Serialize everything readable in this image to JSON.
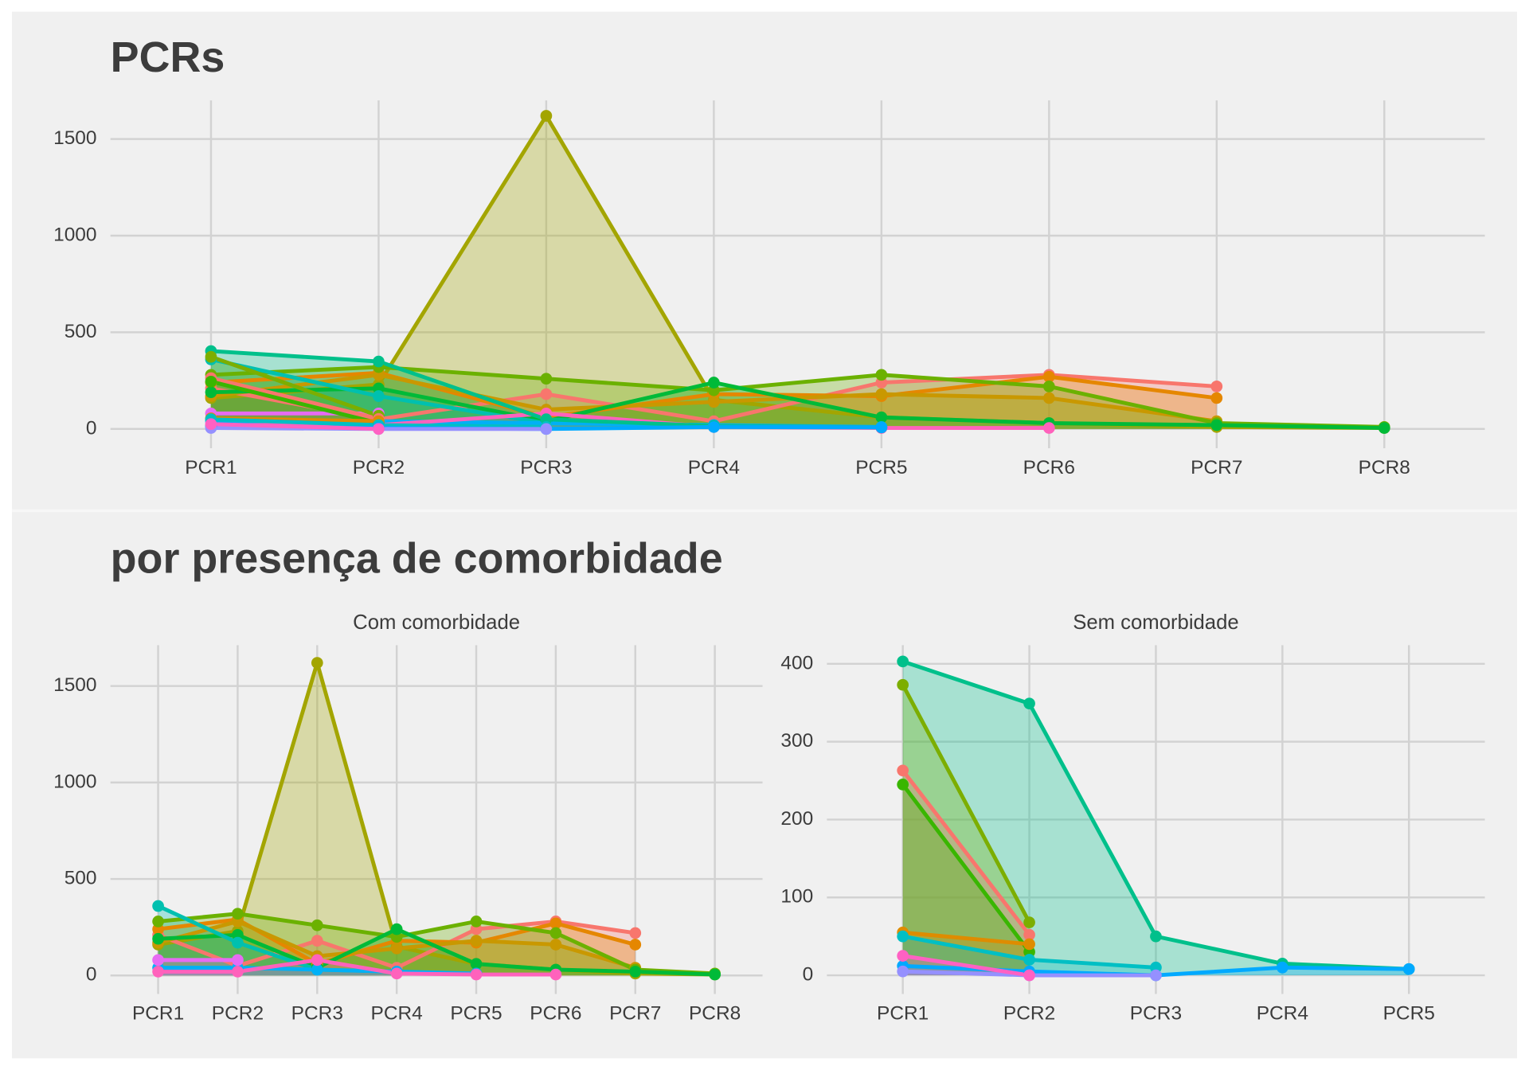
{
  "chart_data": [
    {
      "type": "area",
      "title": "PCRs",
      "categories": [
        "PCR1",
        "PCR2",
        "PCR3",
        "PCR4",
        "PCR5",
        "PCR6",
        "PCR7",
        "PCR8"
      ],
      "ylim": [
        -100,
        1700
      ],
      "yticks": [
        0,
        500,
        1000,
        1500
      ],
      "grid": true,
      "series": [
        {
          "color": "#a3a500",
          "values": [
            160,
            230,
            1620,
            150,
            60,
            30,
            10,
            5
          ]
        },
        {
          "color": "#f8766d",
          "values": [
            210,
            50,
            180,
            40,
            240,
            280,
            220,
            null
          ]
        },
        {
          "color": "#e58700",
          "values": [
            240,
            290,
            60,
            180,
            170,
            270,
            160,
            null
          ]
        },
        {
          "color": "#c99800",
          "values": [
            170,
            280,
            100,
            140,
            180,
            160,
            40,
            null
          ]
        },
        {
          "color": "#6bb100",
          "values": [
            280,
            320,
            260,
            200,
            280,
            220,
            30,
            10
          ]
        },
        {
          "color": "#00ba38",
          "values": [
            190,
            210,
            40,
            240,
            60,
            30,
            20,
            5
          ]
        },
        {
          "color": "#00c0af",
          "values": [
            360,
            170,
            30,
            20,
            null,
            null,
            null,
            null
          ]
        },
        {
          "color": "#00b0f6",
          "values": [
            40,
            40,
            30,
            20,
            10,
            null,
            null,
            null
          ]
        },
        {
          "color": "#e76bf3",
          "values": [
            80,
            80,
            null,
            null,
            null,
            null,
            null,
            null
          ]
        },
        {
          "color": "#ff62bc",
          "values": [
            20,
            20,
            80,
            10,
            5,
            5,
            null,
            null
          ]
        },
        {
          "color": "#00c08b",
          "values": [
            403,
            349,
            50,
            15,
            8,
            null,
            null,
            null
          ]
        },
        {
          "color": "#7cae00",
          "values": [
            373,
            68,
            null,
            null,
            null,
            null,
            null,
            null
          ]
        },
        {
          "color": "#f8766d",
          "values": [
            263,
            52,
            null,
            null,
            null,
            null,
            null,
            null
          ]
        },
        {
          "color": "#39b600",
          "values": [
            245,
            30,
            null,
            null,
            null,
            null,
            null,
            null
          ]
        },
        {
          "color": "#de8c00",
          "values": [
            55,
            40,
            null,
            null,
            null,
            null,
            null,
            null
          ]
        },
        {
          "color": "#00bfc4",
          "values": [
            50,
            20,
            10,
            null,
            null,
            null,
            null,
            null
          ]
        },
        {
          "color": "#00a9ff",
          "values": [
            12,
            5,
            0,
            10,
            8,
            null,
            null,
            null
          ]
        },
        {
          "color": "#9590ff",
          "values": [
            5,
            0,
            0,
            null,
            null,
            null,
            null,
            null
          ]
        },
        {
          "color": "#ff61c3",
          "values": [
            25,
            0,
            null,
            null,
            null,
            null,
            null,
            null
          ]
        }
      ]
    },
    {
      "type": "area",
      "title": "por presença de comorbidade",
      "subtitle": "Com comorbidade",
      "categories": [
        "PCR1",
        "PCR2",
        "PCR3",
        "PCR4",
        "PCR5",
        "PCR6",
        "PCR7",
        "PCR8"
      ],
      "ylim": [
        -96,
        1712
      ],
      "yticks": [
        0,
        500,
        1000,
        1500
      ],
      "grid": true,
      "series": [
        {
          "color": "#a3a500",
          "values": [
            160,
            230,
            1620,
            150,
            60,
            30,
            10,
            5
          ]
        },
        {
          "color": "#f8766d",
          "values": [
            210,
            50,
            180,
            40,
            240,
            280,
            220,
            null
          ]
        },
        {
          "color": "#e58700",
          "values": [
            240,
            290,
            60,
            180,
            170,
            270,
            160,
            null
          ]
        },
        {
          "color": "#c99800",
          "values": [
            170,
            280,
            100,
            140,
            180,
            160,
            40,
            null
          ]
        },
        {
          "color": "#6bb100",
          "values": [
            280,
            320,
            260,
            200,
            280,
            220,
            30,
            10
          ]
        },
        {
          "color": "#00ba38",
          "values": [
            190,
            210,
            40,
            240,
            60,
            30,
            20,
            5
          ]
        },
        {
          "color": "#00c0af",
          "values": [
            360,
            170,
            30,
            20,
            null,
            null,
            null,
            null
          ]
        },
        {
          "color": "#00b0f6",
          "values": [
            40,
            40,
            30,
            20,
            10,
            null,
            null,
            null
          ]
        },
        {
          "color": "#e76bf3",
          "values": [
            80,
            80,
            null,
            null,
            null,
            null,
            null,
            null
          ]
        },
        {
          "color": "#ff62bc",
          "values": [
            20,
            20,
            80,
            10,
            5,
            5,
            null,
            null
          ]
        }
      ]
    },
    {
      "type": "area",
      "subtitle": "Sem comorbidade",
      "categories": [
        "PCR1",
        "PCR2",
        "PCR3",
        "PCR4",
        "PCR5"
      ],
      "ylim": [
        -24,
        424
      ],
      "yticks": [
        0,
        100,
        200,
        300,
        400
      ],
      "grid": true,
      "series": [
        {
          "color": "#00c08b",
          "values": [
            403,
            349,
            50,
            15,
            8
          ]
        },
        {
          "color": "#7cae00",
          "values": [
            373,
            68,
            null,
            null,
            null
          ]
        },
        {
          "color": "#f8766d",
          "values": [
            263,
            52,
            null,
            null,
            null
          ]
        },
        {
          "color": "#39b600",
          "values": [
            245,
            30,
            null,
            null,
            null
          ]
        },
        {
          "color": "#de8c00",
          "values": [
            55,
            40,
            null,
            null,
            null
          ]
        },
        {
          "color": "#00bfc4",
          "values": [
            50,
            20,
            10,
            null,
            null
          ]
        },
        {
          "color": "#00a9ff",
          "values": [
            12,
            5,
            0,
            10,
            8
          ]
        },
        {
          "color": "#9590ff",
          "values": [
            5,
            0,
            0,
            null,
            null
          ]
        },
        {
          "color": "#ff61c3",
          "values": [
            25,
            0,
            null,
            null,
            null
          ]
        }
      ]
    }
  ]
}
